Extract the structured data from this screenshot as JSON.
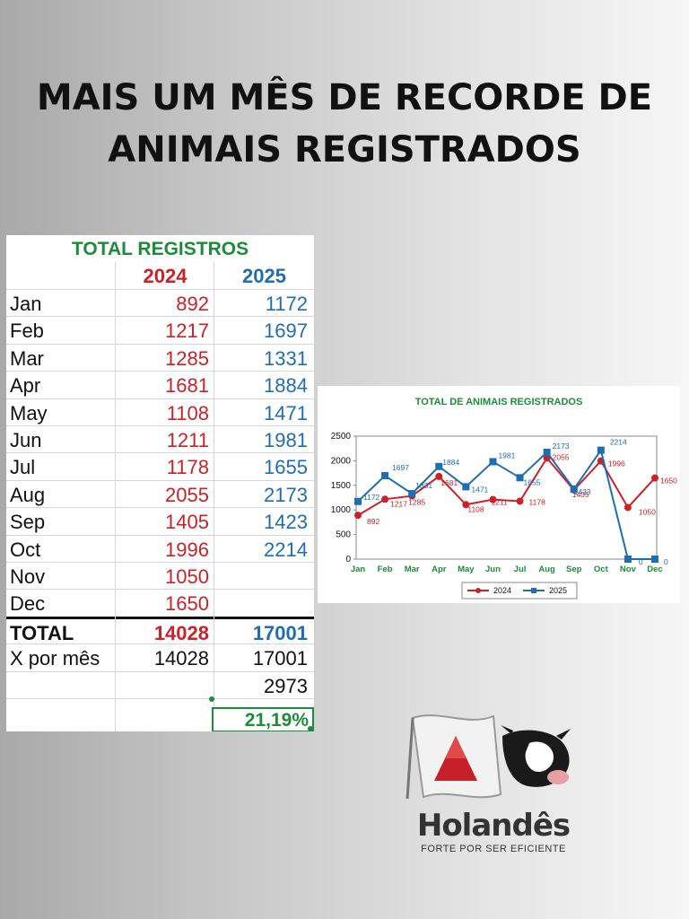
{
  "headline": {
    "line1": "MAIS UM MÊS DE RECORDE DE",
    "line2": "ANIMAIS REGISTRADOS"
  },
  "table": {
    "title": "TOTAL REGISTROS",
    "col_2024": "2024",
    "col_2025": "2025",
    "rows": [
      {
        "month": "Jan",
        "v2024": "892",
        "v2025": "1172"
      },
      {
        "month": "Feb",
        "v2024": "1217",
        "v2025": "1697"
      },
      {
        "month": "Mar",
        "v2024": "1285",
        "v2025": "1331"
      },
      {
        "month": "Apr",
        "v2024": "1681",
        "v2025": "1884"
      },
      {
        "month": "May",
        "v2024": "1108",
        "v2025": "1471"
      },
      {
        "month": "Jun",
        "v2024": "1211",
        "v2025": "1981"
      },
      {
        "month": "Jul",
        "v2024": "1178",
        "v2025": "1655"
      },
      {
        "month": "Aug",
        "v2024": "2055",
        "v2025": "2173"
      },
      {
        "month": "Sep",
        "v2024": "1405",
        "v2025": "1423"
      },
      {
        "month": "Oct",
        "v2024": "1996",
        "v2025": "2214"
      },
      {
        "month": "Nov",
        "v2024": "1050",
        "v2025": ""
      },
      {
        "month": "Dec",
        "v2024": "1650",
        "v2025": ""
      }
    ],
    "total_label": "TOTAL",
    "total_2024": "14028",
    "total_2025": "17001",
    "xmes_label": "X por mês",
    "xmes_2024": "14028",
    "xmes_2025": "17001",
    "difference": "2973",
    "growth_pct": "21,19%"
  },
  "colors": {
    "red_2024": "#cc2127",
    "blue_2025": "#1f6db4",
    "green": "#1c8c3a"
  },
  "chart_data": {
    "type": "line",
    "title": "TOTAL DE ANIMAIS REGISTRADOS",
    "categories": [
      "Jan",
      "Feb",
      "Mar",
      "Apr",
      "May",
      "Jun",
      "Jul",
      "Aug",
      "Sep",
      "Oct",
      "Nov",
      "Dec"
    ],
    "series": [
      {
        "name": "2024",
        "color": "#cc2127",
        "marker": "circle",
        "values": [
          892,
          1217,
          1285,
          1681,
          1108,
          1211,
          1178,
          2055,
          1405,
          1996,
          1050,
          1650
        ]
      },
      {
        "name": "2025",
        "color": "#1f6db4",
        "marker": "square",
        "values": [
          1172,
          1697,
          1331,
          1884,
          1471,
          1981,
          1655,
          2173,
          1423,
          2214,
          0,
          0
        ]
      }
    ],
    "yticks": [
      0,
      500,
      1000,
      1500,
      2000,
      2500
    ],
    "ylim": [
      0,
      2500
    ],
    "grid": false,
    "legend": "bottom"
  },
  "logo": {
    "name": "Holandês",
    "tagline": "FORTE POR SER EFICIENTE"
  }
}
